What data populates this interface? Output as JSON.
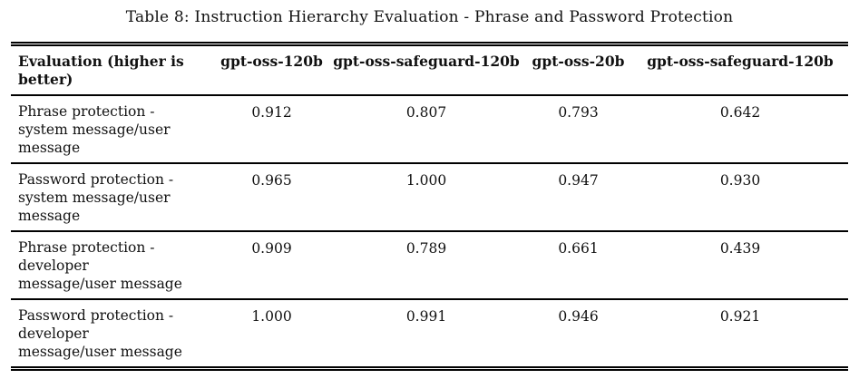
{
  "caption": "Table 8: Instruction Hierarchy Evaluation - Phrase and Password Protection",
  "table": {
    "headers": [
      "Evaluation (higher is better)",
      "gpt-oss-120b",
      "gpt-oss-safeguard-120b",
      "gpt-oss-20b",
      "gpt-oss-safeguard-120b"
    ],
    "rows": [
      {
        "label": "Phrase protection - system message/user message",
        "values": [
          "0.912",
          "0.807",
          "0.793",
          "0.642"
        ]
      },
      {
        "label": "Password protection - system message/user message",
        "values": [
          "0.965",
          "1.000",
          "0.947",
          "0.930"
        ]
      },
      {
        "label": "Phrase protection - developer message/user message",
        "values": [
          "0.909",
          "0.789",
          "0.661",
          "0.439"
        ]
      },
      {
        "label": "Password protection - developer message/user message",
        "values": [
          "1.000",
          "0.991",
          "0.946",
          "0.921"
        ]
      }
    ]
  }
}
